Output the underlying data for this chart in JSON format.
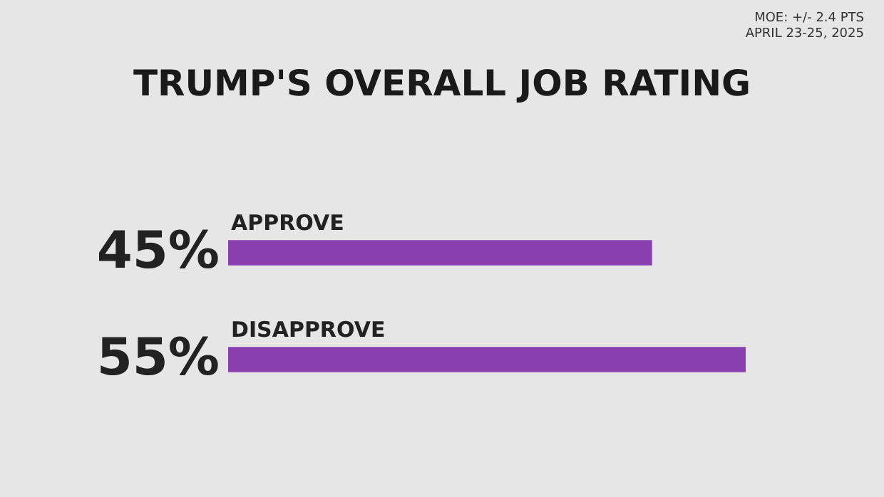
{
  "chart_data": {
    "type": "bar",
    "orientation": "horizontal",
    "title": "TRUMP'S OVERALL JOB RATING",
    "annotations": [
      "MOE: +/- 2.4 PTS",
      "APRIL 23-25, 2025"
    ],
    "categories": [
      "APPROVE",
      "DISAPPROVE"
    ],
    "values": [
      45,
      55
    ],
    "value_labels": [
      "45%",
      "55%"
    ],
    "color": "#8a3fb0"
  }
}
